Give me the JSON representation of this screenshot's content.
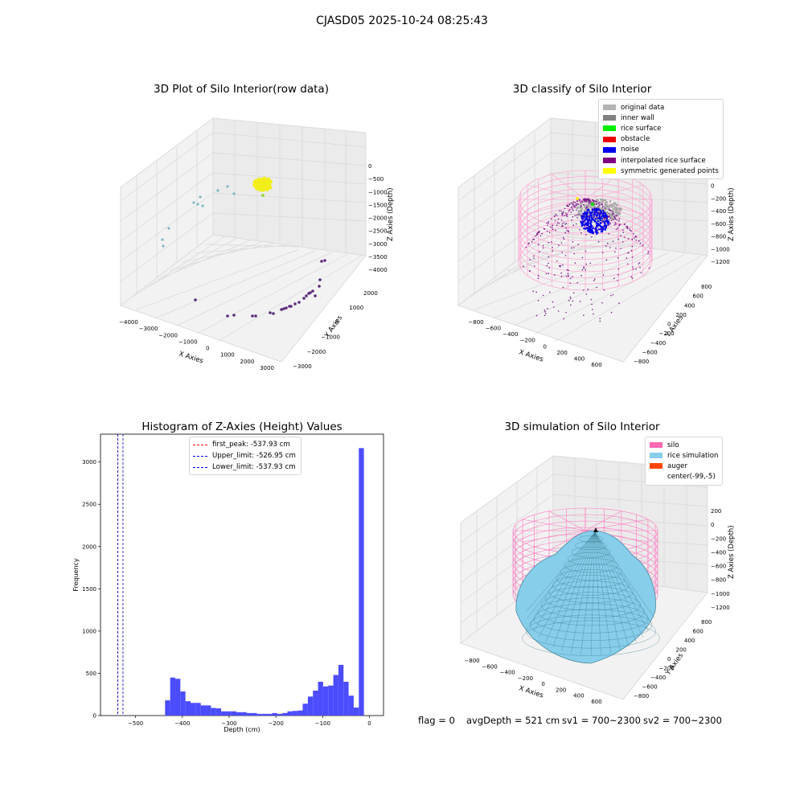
{
  "suptitle": "CJASD05 2025-10-24 08:25:43",
  "footer": {
    "flag": "flag = 0",
    "avg_depth": "avgDepth = 521 cm",
    "sv1": "sv1 = 700~2300",
    "sv2": "sv2 = 700~2300"
  },
  "chart_data": [
    {
      "type": "scatter",
      "title": "3D Plot of Silo Interior(row data)",
      "xlabel": "X Axies",
      "ylabel": "Y Axies",
      "zlabel": "Z Axies (Depth)",
      "x_ticks": [
        "−4000",
        "−3000",
        "−2000",
        "−1000",
        "0",
        "1000",
        "2000",
        "3000"
      ],
      "y_ticks": [
        "−3000",
        "−2000",
        "−1000",
        "0",
        "1000",
        "2000"
      ],
      "z_ticks": [
        "0",
        "−500",
        "−1000",
        "−1500",
        "−2000",
        "−2500",
        "−3000",
        "−3500",
        "−4000"
      ],
      "xlim": [
        -4200,
        3200
      ],
      "ylim": [
        -3200,
        2200
      ],
      "zlim": [
        -4100,
        200
      ]
    },
    {
      "type": "scatter",
      "title": "3D classify of Silo Interior",
      "xlabel": "X Axies",
      "ylabel": "Y Axies",
      "zlabel": "Z Axies (Depth)",
      "x_ticks": [
        "−800",
        "−600",
        "−400",
        "−200",
        "0",
        "200",
        "400",
        "600"
      ],
      "y_ticks": [
        "−800",
        "−600",
        "−400",
        "−200",
        "0",
        "200",
        "400",
        "600",
        "800"
      ],
      "z_ticks": [
        "200",
        "0",
        "−200",
        "−400",
        "−600",
        "−800",
        "−1000",
        "−1200"
      ],
      "legend": [
        {
          "label": "original data",
          "color": "#b3b3b3"
        },
        {
          "label": "inner wall",
          "color": "#808080"
        },
        {
          "label": "rice surface",
          "color": "#00ee00"
        },
        {
          "label": "obstacle",
          "color": "#ee0000"
        },
        {
          "label": "noise",
          "color": "#0000ee"
        },
        {
          "label": "interpolated rice surface",
          "color": "#800080"
        },
        {
          "label": "symmetric generated points",
          "color": "#ffff00"
        }
      ]
    },
    {
      "type": "bar",
      "title": "Histogram of Z-Axies (Height) Values",
      "xlabel": "Depth (cm)",
      "ylabel": "Frequency",
      "xlim": [
        -575,
        30
      ],
      "ylim": [
        0,
        3330
      ],
      "x_ticks": [
        -500,
        -400,
        -300,
        -200,
        -100,
        0
      ],
      "y_ticks": [
        0,
        500,
        1000,
        1500,
        2000,
        2500,
        3000
      ],
      "bin_width": 10.9,
      "bar_color": "#4c4cff",
      "bins_left": [
        -437,
        -426.1,
        -415.2,
        -404.3,
        -393.4,
        -382.5,
        -371.6,
        -360.7,
        -349.8,
        -338.9,
        -328,
        -317.1,
        -306.2,
        -295.3,
        -284.4,
        -273.5,
        -262.6,
        -251.7,
        -240.8,
        -229.9,
        -219,
        -208.1,
        -197.2,
        -186.3,
        -175.4,
        -164.5,
        -153.6,
        -142.7,
        -131.8,
        -120.9,
        -110,
        -99.1,
        -88.2,
        -77.3,
        -66.4,
        -55.5,
        -44.6,
        -33.7,
        -22.8,
        -11.9
      ],
      "values": [
        180,
        450,
        435,
        285,
        170,
        150,
        150,
        120,
        120,
        90,
        85,
        50,
        50,
        50,
        40,
        40,
        30,
        30,
        20,
        20,
        20,
        30,
        20,
        30,
        50,
        55,
        60,
        140,
        225,
        295,
        400,
        345,
        355,
        480,
        600,
        400,
        235,
        95,
        3165,
        0
      ],
      "lines": [
        {
          "label": "first_peak: -537.93 cm",
          "x": -537.93,
          "color": "#ff0000"
        },
        {
          "label": "Upper_limit: -526.95 cm",
          "x": -526.95,
          "color": "#0000cc"
        },
        {
          "label": "Lower_limit: -537.93 cm",
          "x": -537.93,
          "color": "#0000cc"
        }
      ]
    },
    {
      "type": "area",
      "title": "3D simulation of Silo Interior",
      "xlabel": "X Axies",
      "ylabel": "Y Axies",
      "zlabel": "Z Axies (Depth)",
      "x_ticks": [
        "−800",
        "−600",
        "−400",
        "−200",
        "0",
        "200",
        "400",
        "600"
      ],
      "y_ticks": [
        "−800",
        "−600",
        "−400",
        "−200",
        "0",
        "200",
        "400",
        "600",
        "800"
      ],
      "z_ticks": [
        "200",
        "0",
        "−200",
        "−400",
        "−600",
        "−800",
        "−1000",
        "−1200"
      ],
      "legend": [
        {
          "label": "silo",
          "color": "#ff69b4"
        },
        {
          "label": "rice simulation",
          "color": "#87ceeb"
        },
        {
          "label": "auger",
          "color": "#ff4500"
        },
        {
          "label": "center(-99,-5)",
          "color": "#ffffff"
        }
      ]
    }
  ]
}
